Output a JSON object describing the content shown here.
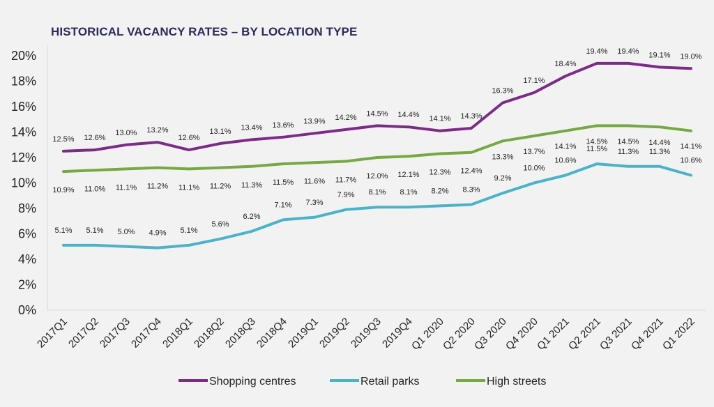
{
  "chart_data": {
    "type": "line",
    "title": "HISTORICAL VACANCY RATES – BY LOCATION TYPE",
    "xlabel": "",
    "ylabel": "",
    "ylim": [
      0,
      20
    ],
    "yticks": [
      "0%",
      "2%",
      "4%",
      "6%",
      "8%",
      "10%",
      "12%",
      "14%",
      "16%",
      "18%",
      "20%"
    ],
    "grid": false,
    "legend_position": "bottom",
    "categories": [
      "2017Q1",
      "2017Q2",
      "2017Q3",
      "2017Q4",
      "2018Q1",
      "2018Q2",
      "2018Q3",
      "2018Q4",
      "2019Q1",
      "2019Q2",
      "2019Q3",
      "2019Q4",
      "Q1 2020",
      "Q2 2020",
      "Q3 2020",
      "Q4 2020",
      "Q1 2021",
      "Q2 2021",
      "Q3 2021",
      "Q4 2021",
      "Q1 2022"
    ],
    "series": [
      {
        "name": "Shopping centres",
        "color": "#7b2d86",
        "values": [
          12.5,
          12.6,
          13.0,
          13.2,
          12.6,
          13.1,
          13.4,
          13.6,
          13.9,
          14.2,
          14.5,
          14.4,
          14.1,
          14.3,
          16.3,
          17.1,
          18.4,
          19.4,
          19.4,
          19.1,
          19.0
        ]
      },
      {
        "name": "Retail parks",
        "color": "#4bb3c8",
        "values": [
          5.1,
          5.1,
          5.0,
          4.9,
          5.1,
          5.6,
          6.2,
          7.1,
          7.3,
          7.9,
          8.1,
          8.1,
          8.2,
          8.3,
          9.2,
          10.0,
          10.6,
          11.5,
          11.3,
          11.3,
          10.6
        ]
      },
      {
        "name": "High streets",
        "color": "#76a844",
        "values": [
          10.9,
          11.0,
          11.1,
          11.2,
          11.1,
          11.2,
          11.3,
          11.5,
          11.6,
          11.7,
          12.0,
          12.1,
          12.3,
          12.4,
          13.3,
          13.7,
          14.1,
          14.5,
          14.5,
          14.4,
          14.1
        ]
      }
    ]
  }
}
